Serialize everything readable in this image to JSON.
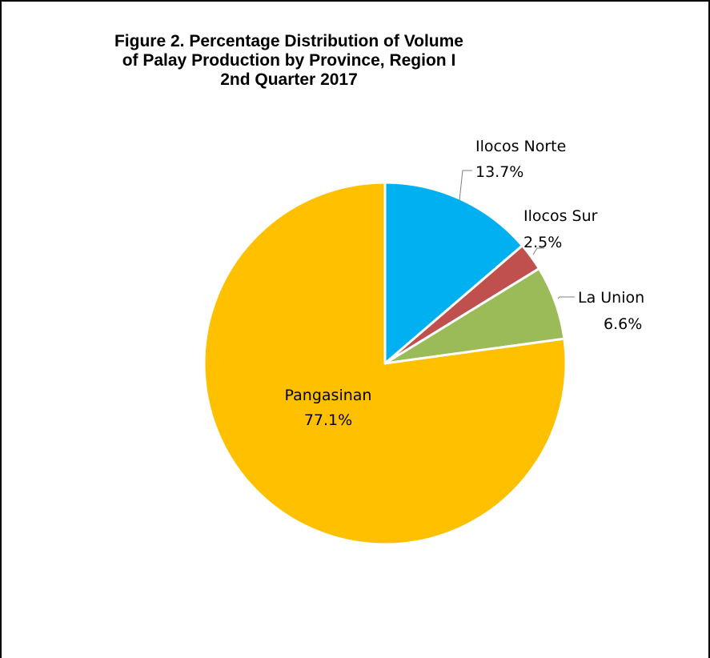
{
  "chart_data": {
    "type": "pie",
    "title_lines": [
      "Figure 2. Percentage Distribution of Volume",
      "of Palay Production by Province, Region I",
      "2nd Quarter 2017"
    ],
    "slices": [
      {
        "name": "Ilocos Norte",
        "value": 13.7,
        "label": "13.7%",
        "color": "#00B0F0"
      },
      {
        "name": "Ilocos Sur",
        "value": 2.5,
        "label": "2.5%",
        "color": "#C0504D"
      },
      {
        "name": "La Union",
        "value": 6.6,
        "label": "6.6%",
        "color": "#9BBB59"
      },
      {
        "name": "Pangasinan",
        "value": 77.1,
        "label": "77.1%",
        "color": "#FFC000"
      }
    ],
    "start_angle": "12 o'clock",
    "direction": "clockwise",
    "legend": "none"
  }
}
